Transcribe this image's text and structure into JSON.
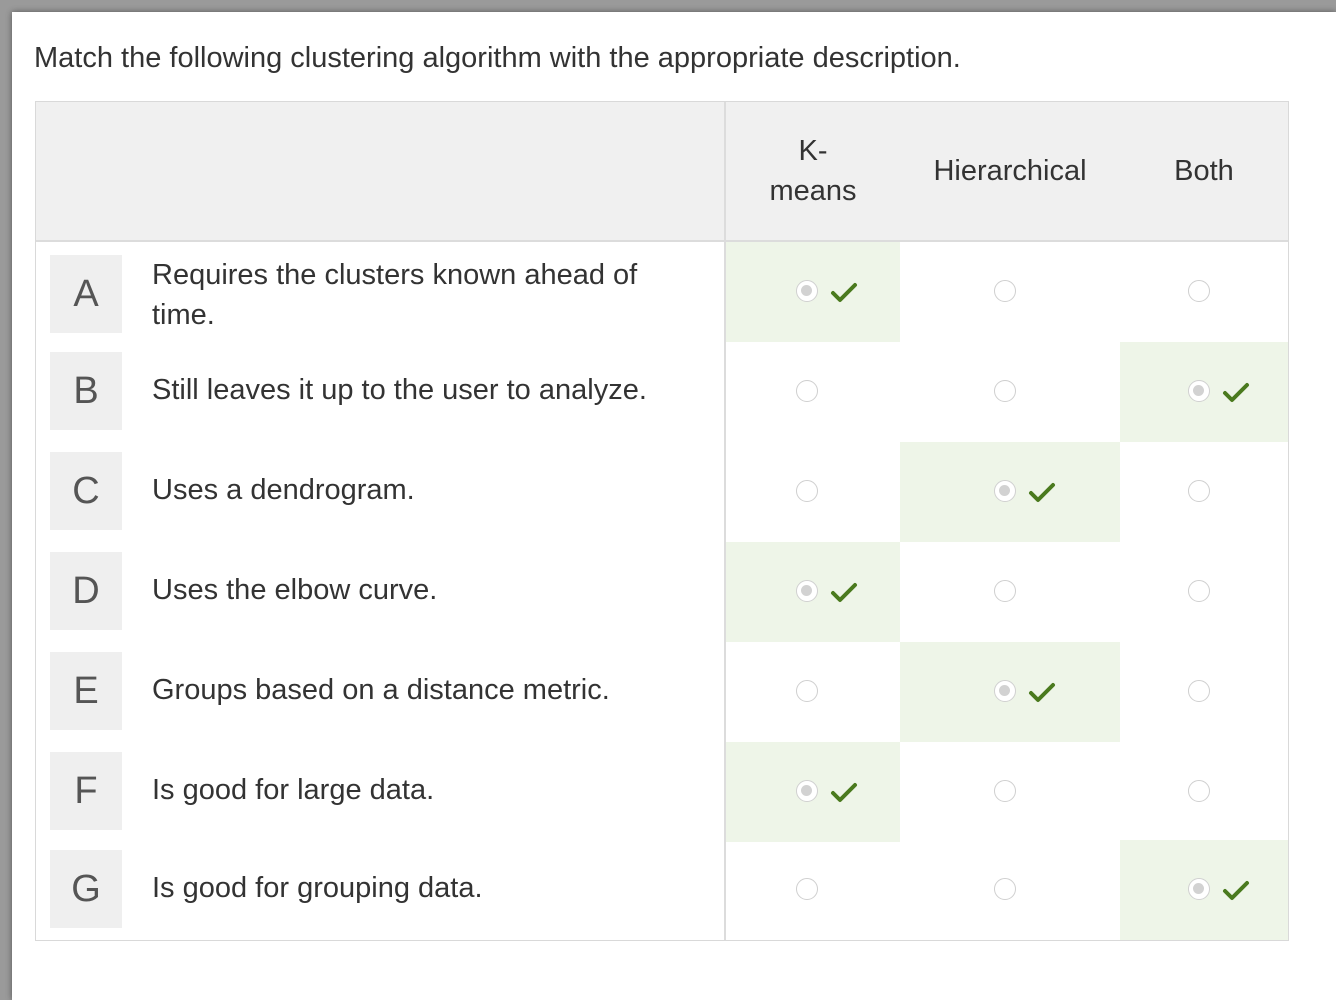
{
  "prompt": "Match the following clustering algorithm with the appropriate description.",
  "columns": [
    {
      "label": "K-\nmeans"
    },
    {
      "label": "Hierarchical"
    },
    {
      "label": "Both"
    }
  ],
  "rows": [
    {
      "letter": "A",
      "text": "Requires the clusters known ahead of time.",
      "answer": 0
    },
    {
      "letter": "B",
      "text": "Still leaves it up to the user to analyze.",
      "answer": 2
    },
    {
      "letter": "C",
      "text": "Uses a dendrogram.",
      "answer": 1
    },
    {
      "letter": "D",
      "text": "Uses the elbow curve.",
      "answer": 0
    },
    {
      "letter": "E",
      "text": "Groups based on a distance metric.",
      "answer": 1
    },
    {
      "letter": "F",
      "text": "Is good for large data.",
      "answer": 0
    },
    {
      "letter": "G",
      "text": "Is good for grouping data.",
      "answer": 2
    }
  ],
  "colors": {
    "correct_bg": "#eef5e8",
    "check": "#4a7a1e"
  },
  "icons": {
    "selected": "radio-selected-icon",
    "unselected": "radio-icon",
    "correct": "checkmark-icon"
  }
}
